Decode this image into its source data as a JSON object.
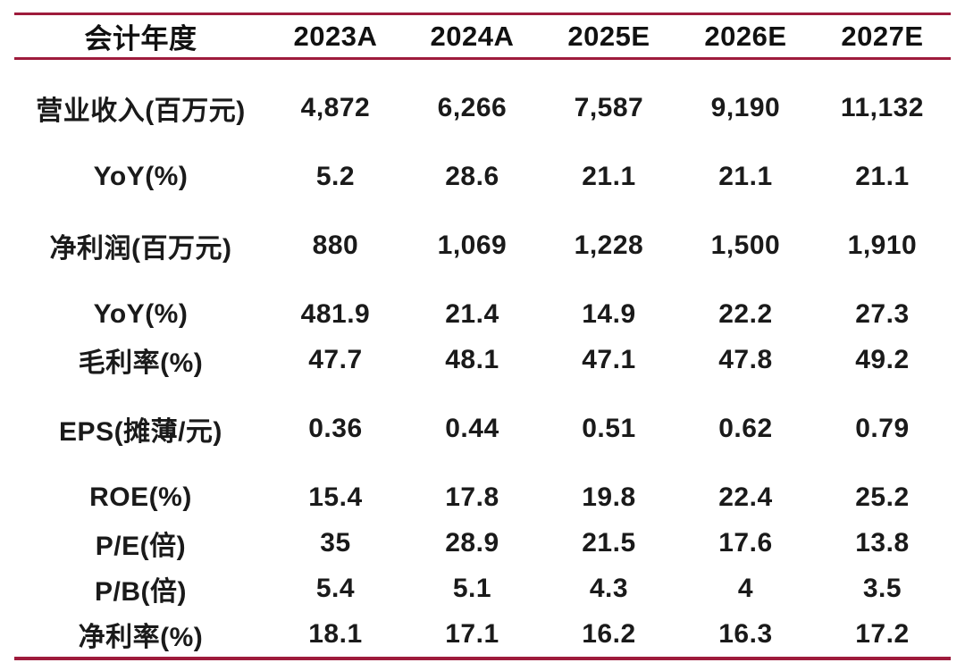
{
  "accent_color": "#9E1B3C",
  "text_color": "#1a1a1a",
  "chart_data": {
    "type": "table",
    "title": "",
    "columns": [
      "会计年度",
      "2023A",
      "2024A",
      "2025E",
      "2026E",
      "2027E"
    ],
    "rows": [
      {
        "label": "营业收入(百万元)",
        "values": [
          "4,872",
          "6,266",
          "7,587",
          "9,190",
          "11,132"
        ],
        "gap_before": true
      },
      {
        "label": "YoY(%)",
        "values": [
          "5.2",
          "28.6",
          "21.1",
          "21.1",
          "21.1"
        ],
        "gap_before": true
      },
      {
        "label": "净利润(百万元)",
        "values": [
          "880",
          "1,069",
          "1,228",
          "1,500",
          "1,910"
        ],
        "gap_before": true
      },
      {
        "label": "YoY(%)",
        "values": [
          "481.9",
          "21.4",
          "14.9",
          "22.2",
          "27.3"
        ],
        "gap_before": true
      },
      {
        "label": "毛利率(%)",
        "values": [
          "47.7",
          "48.1",
          "47.1",
          "47.8",
          "49.2"
        ],
        "gap_before": false
      },
      {
        "label": "EPS(摊薄/元)",
        "values": [
          "0.36",
          "0.44",
          "0.51",
          "0.62",
          "0.79"
        ],
        "gap_before": true
      },
      {
        "label": "ROE(%)",
        "values": [
          "15.4",
          "17.8",
          "19.8",
          "22.4",
          "25.2"
        ],
        "gap_before": true
      },
      {
        "label": "P/E(倍)",
        "values": [
          "35",
          "28.9",
          "21.5",
          "17.6",
          "13.8"
        ],
        "gap_before": false
      },
      {
        "label": "P/B(倍)",
        "values": [
          "5.4",
          "5.1",
          "4.3",
          "4",
          "3.5"
        ],
        "gap_before": false
      },
      {
        "label": "净利率(%)",
        "values": [
          "18.1",
          "17.1",
          "16.2",
          "16.3",
          "17.2"
        ],
        "gap_before": false
      }
    ]
  }
}
